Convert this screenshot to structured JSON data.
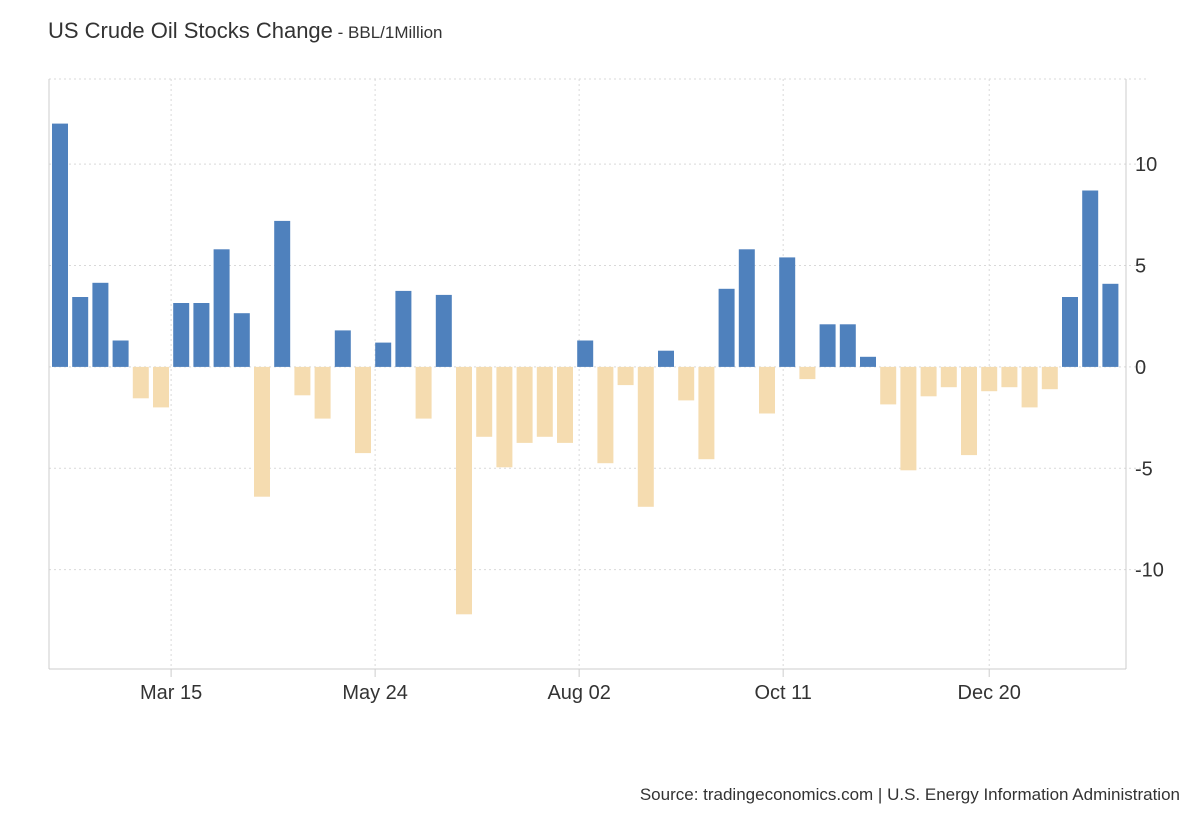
{
  "header": {
    "title": "US Crude Oil Stocks Change",
    "separator": " - ",
    "unit": "BBL/1Million"
  },
  "source": "Source: tradingeconomics.com | U.S. Energy Information Administration",
  "colors": {
    "positive": "#4f81bd",
    "negative": "#f5dcb0",
    "grid": "#d9d9d9",
    "axis": "#cccccc",
    "text": "#333333"
  },
  "chart_data": {
    "type": "bar",
    "title": "US Crude Oil Stocks Change",
    "unit": "BBL/1Million",
    "ylim": [
      -14.9,
      14.2
    ],
    "yticks": [
      10,
      5,
      0,
      -5,
      -10
    ],
    "ytick_labels": [
      "10",
      "5",
      "0",
      "-5",
      "-10"
    ],
    "xtick_labels": [
      "Mar 15",
      "May 24",
      "Aug 02",
      "Oct 11",
      "Dec 20"
    ],
    "xtick_bar_index": [
      5.5,
      15.6,
      25.7,
      35.8,
      46.0
    ],
    "grid": true,
    "values": [
      12.0,
      3.45,
      4.15,
      1.3,
      -1.55,
      -2.0,
      3.15,
      3.15,
      5.8,
      2.65,
      -6.4,
      7.2,
      -1.4,
      -2.55,
      1.8,
      -4.25,
      1.2,
      3.75,
      -2.55,
      3.55,
      -12.2,
      -3.45,
      -4.95,
      -3.75,
      -3.45,
      -3.75,
      1.3,
      -4.75,
      -0.9,
      -6.9,
      0.8,
      -1.65,
      -4.55,
      3.85,
      5.8,
      -2.3,
      5.4,
      -0.6,
      2.1,
      2.1,
      0.5,
      -1.85,
      -5.1,
      -1.45,
      -1.0,
      -4.35,
      -1.2,
      -1.0,
      -2.0,
      -1.1,
      3.45,
      8.7,
      4.1
    ]
  }
}
